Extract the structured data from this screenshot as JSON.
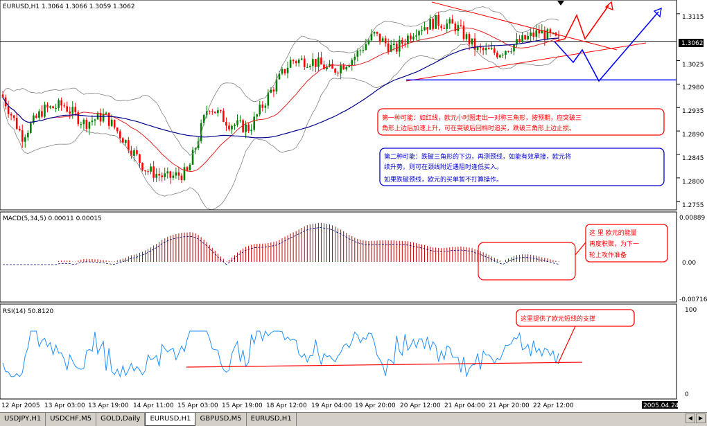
{
  "main": {
    "title": "EURUSD,H1",
    "ohlc": "1.3064 1.3066 1.3059 1.3062",
    "price_ticks": [
      "1.3115",
      "1.3025",
      "1.2980",
      "1.2935",
      "1.2890",
      "1.2845",
      "1.2800",
      "1.2755"
    ],
    "current_price": "1.3062",
    "note1": [
      "第一种可能：如红线，欧元小时图走出一对称三角形，按预期，应突破三",
      "角形上边后加速上升，可在突破后回档时追买，跌破三角形上边止损。"
    ],
    "note2": [
      "第二种可能：跌破三角形的下边，再测颈线，如能有效承接，欧元将",
      "续升势。则可在颈线附近遇阻时逢低买入。",
      "如果跌破颈线，欧元的买单暂不打算操作。"
    ]
  },
  "macd": {
    "title": "MACD(5,34,5) 0.00011 0.00015",
    "ticks": [
      "0.00889",
      "0.00",
      "-0.00716"
    ],
    "note": [
      "这 里  欧元的能量",
      "再度积聚，为下一",
      "轮上攻作准备"
    ]
  },
  "rsi": {
    "title": "RSI(14) 50.8120",
    "ticks": [
      "100",
      "0"
    ],
    "note": "这里提供了欧元短线的支撑"
  },
  "time_axis": {
    "labels": [
      "12 Apr 2005",
      "13 Apr 03:00",
      "13 Apr 19:00",
      "14 Apr 11:00",
      "15 Apr 03:00",
      "15 Apr 19:00",
      "18 Apr 12:00",
      "19 Apr 04:00",
      "19 Apr 20:00",
      "20 Apr 12:00",
      "21 Apr 04:00",
      "21 Apr 20:00",
      "22 Apr 12:00"
    ],
    "current": "2005.04.24 14:00"
  },
  "tabs": [
    {
      "label": "USDJPY,H1",
      "active": false
    },
    {
      "label": "USDCHF,M5",
      "active": false
    },
    {
      "label": "GOLD,Daily",
      "active": false
    },
    {
      "label": "EURUSD,H1",
      "active": true
    },
    {
      "label": "GBPUSD,M5",
      "active": false
    },
    {
      "label": "EURUSD,H1",
      "active": false
    }
  ],
  "colors": {
    "bull": "#008000",
    "bear": "#ff0000",
    "ma_slow": "#00008b",
    "ma_fast": "#e02020",
    "bands": "#808080",
    "macd": "#c00000",
    "rsi": "#1e90ff",
    "annot_red": "#ff0000",
    "annot_blue": "#0000ff"
  },
  "chart_data": [
    {
      "type": "candlestick",
      "symbol": "EURUSD",
      "timeframe": "H1",
      "ylim": [
        1.274,
        1.314
      ],
      "close_path": [
        {
          "x": "12 Apr 2005",
          "y": 1.296
        },
        {
          "x": "12 Apr 20:00",
          "y": 1.288
        },
        {
          "x": "13 Apr 03:00",
          "y": 1.293
        },
        {
          "x": "13 Apr 10:00",
          "y": 1.294
        },
        {
          "x": "13 Apr 15:00",
          "y": 1.2905
        },
        {
          "x": "13 Apr 19:00",
          "y": 1.292
        },
        {
          "x": "14 Apr 04:00",
          "y": 1.287
        },
        {
          "x": "14 Apr 11:00",
          "y": 1.2815
        },
        {
          "x": "14 Apr 20:00",
          "y": 1.28
        },
        {
          "x": "15 Apr 03:00",
          "y": 1.281
        },
        {
          "x": "15 Apr 12:00",
          "y": 1.294
        },
        {
          "x": "15 Apr 19:00",
          "y": 1.2905
        },
        {
          "x": "15 Apr 23:00",
          "y": 1.2895
        },
        {
          "x": "18 Apr 04:00",
          "y": 1.2965
        },
        {
          "x": "18 Apr 12:00",
          "y": 1.3025
        },
        {
          "x": "18 Apr 20:00",
          "y": 1.3025
        },
        {
          "x": "19 Apr 04:00",
          "y": 1.3005
        },
        {
          "x": "19 Apr 12:00",
          "y": 1.303
        },
        {
          "x": "19 Apr 20:00",
          "y": 1.3075
        },
        {
          "x": "20 Apr 04:00",
          "y": 1.3045
        },
        {
          "x": "20 Apr 12:00",
          "y": 1.3085
        },
        {
          "x": "20 Apr 20:00",
          "y": 1.31
        },
        {
          "x": "21 Apr 04:00",
          "y": 1.309
        },
        {
          "x": "21 Apr 12:00",
          "y": 1.3045
        },
        {
          "x": "21 Apr 20:00",
          "y": 1.304
        },
        {
          "x": "22 Apr 04:00",
          "y": 1.306
        },
        {
          "x": "22 Apr 12:00",
          "y": 1.308
        },
        {
          "x": "22 Apr 20:00",
          "y": 1.3062
        }
      ],
      "indicators": [
        "moving average (fast)",
        "moving average (slow)",
        "bollinger bands"
      ],
      "current_price": 1.3062,
      "neckline": 1.2988
    },
    {
      "type": "histogram",
      "indicator": "MACD(5,34,5)",
      "values_label": "0.00011 0.00015",
      "ylim": [
        -0.00716,
        0.00889
      ]
    },
    {
      "type": "line",
      "indicator": "RSI(14)",
      "current": 50.812,
      "ylim": [
        0,
        100
      ]
    }
  ]
}
